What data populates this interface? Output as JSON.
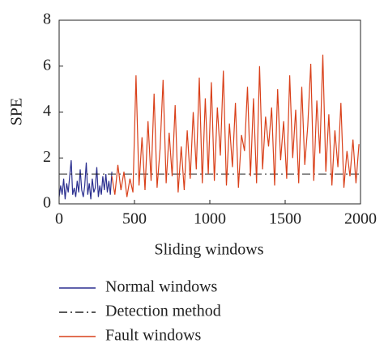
{
  "chart_data": {
    "type": "line",
    "xlabel": "Sliding windows",
    "ylabel": "SPE",
    "xlim": [
      0,
      2000
    ],
    "xticks": [
      0,
      500,
      1000,
      1500,
      2000
    ],
    "ylim": [
      0,
      8
    ],
    "yticks": [
      0,
      2,
      4,
      6,
      8
    ],
    "series": [
      {
        "name": "Normal windows",
        "color": "#2b2f8f",
        "x": [
          0,
          10,
          20,
          30,
          40,
          50,
          60,
          70,
          80,
          90,
          100,
          110,
          120,
          130,
          140,
          150,
          160,
          170,
          180,
          190,
          200,
          210,
          220,
          230,
          240,
          250,
          260,
          270,
          280,
          290,
          300,
          310,
          320,
          330,
          340,
          350
        ],
        "values": [
          0.3,
          0.8,
          0.4,
          1.1,
          0.2,
          0.9,
          0.5,
          1.2,
          1.9,
          0.4,
          0.7,
          0.3,
          1.0,
          0.5,
          1.5,
          0.6,
          0.3,
          0.8,
          1.8,
          0.4,
          0.9,
          0.2,
          1.1,
          0.5,
          0.7,
          1.6,
          0.3,
          0.8,
          0.4,
          1.2,
          0.6,
          1.3,
          0.5,
          1.0,
          0.4,
          1.4
        ]
      },
      {
        "name": "Detection method",
        "color": "#222222",
        "dash": "10 4 2 4",
        "x": [
          0,
          2000
        ],
        "values": [
          1.3,
          1.3
        ]
      },
      {
        "name": "Fault windows",
        "color": "#d9401a",
        "x": [
          350,
          370,
          390,
          410,
          430,
          450,
          470,
          490,
          510,
          530,
          550,
          570,
          590,
          610,
          630,
          650,
          670,
          690,
          710,
          730,
          750,
          770,
          790,
          810,
          830,
          850,
          870,
          890,
          910,
          930,
          950,
          970,
          990,
          1010,
          1030,
          1050,
          1070,
          1090,
          1110,
          1130,
          1150,
          1170,
          1190,
          1210,
          1230,
          1250,
          1270,
          1290,
          1310,
          1330,
          1350,
          1370,
          1390,
          1410,
          1430,
          1450,
          1470,
          1490,
          1510,
          1530,
          1550,
          1570,
          1590,
          1610,
          1630,
          1650,
          1670,
          1690,
          1710,
          1730,
          1750,
          1770,
          1790,
          1810,
          1830,
          1850,
          1870,
          1890,
          1910,
          1930,
          1950,
          1970,
          1990
        ],
        "values": [
          1.2,
          0.4,
          1.7,
          0.6,
          1.4,
          0.3,
          1.1,
          0.5,
          5.6,
          0.8,
          2.9,
          0.6,
          3.6,
          1.0,
          4.8,
          0.7,
          2.4,
          5.4,
          0.9,
          3.1,
          1.2,
          4.3,
          0.5,
          2.5,
          0.6,
          3.2,
          1.1,
          4.0,
          1.5,
          5.5,
          0.9,
          4.6,
          1.3,
          5.3,
          1.0,
          4.2,
          2.1,
          5.8,
          0.8,
          3.5,
          1.6,
          4.4,
          0.7,
          3.0,
          2.3,
          5.1,
          1.2,
          4.6,
          0.9,
          6.0,
          1.5,
          3.8,
          2.5,
          4.2,
          0.8,
          5.0,
          1.9,
          3.6,
          1.1,
          5.6,
          2.0,
          4.1,
          0.9,
          5.1,
          1.7,
          3.4,
          6.1,
          1.0,
          4.5,
          2.2,
          6.5,
          1.4,
          3.9,
          0.8,
          3.2,
          1.6,
          4.4,
          0.7,
          2.3,
          1.2,
          2.8,
          0.9,
          2.6
        ]
      }
    ]
  }
}
